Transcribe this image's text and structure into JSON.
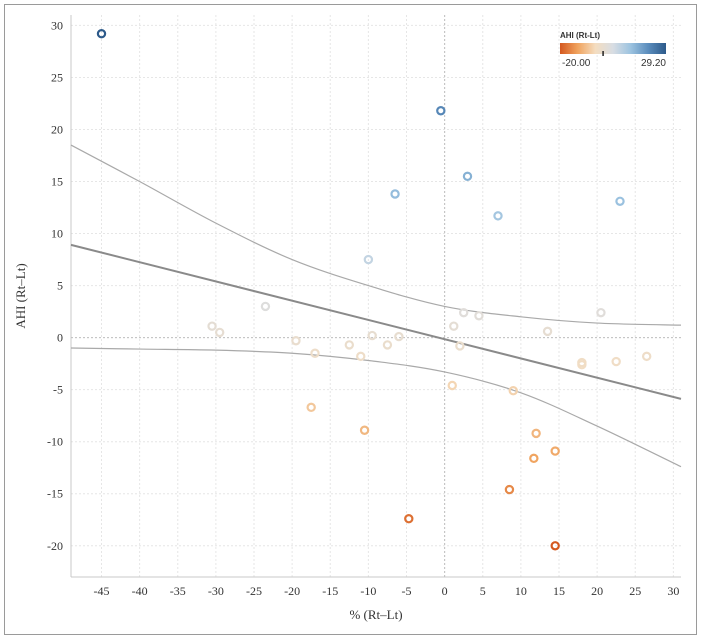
{
  "chart_data": {
    "type": "scatter",
    "title": "",
    "xlabel": "% (Rt–Lt)",
    "ylabel": "AHI (Rt–Lt)",
    "xlim": [
      -49,
      31
    ],
    "ylim": [
      -23,
      31
    ],
    "x_ticks": [
      -45,
      -40,
      -35,
      -30,
      -25,
      -20,
      -15,
      -10,
      -5,
      0,
      5,
      10,
      15,
      20,
      25,
      30
    ],
    "y_ticks": [
      30,
      25,
      20,
      15,
      10,
      5,
      0,
      -5,
      -10,
      -15,
      -20
    ],
    "legend": {
      "title": "AHI (Rt-Lt)",
      "min_label": "-20.00",
      "max_label": "29.20",
      "min": -20.0,
      "max": 29.2,
      "position": "top-right",
      "colors": [
        "#d4581f",
        "#f0a35e",
        "#f4ddc0",
        "#d8dde3",
        "#9cc3e0",
        "#5a8cbc",
        "#2d5a8a"
      ]
    },
    "points": [
      {
        "x": -45.0,
        "y": 29.2
      },
      {
        "x": -0.5,
        "y": 21.8
      },
      {
        "x": 3.0,
        "y": 15.5
      },
      {
        "x": 23.0,
        "y": 13.1
      },
      {
        "x": -6.5,
        "y": 13.8
      },
      {
        "x": 7.0,
        "y": 11.7
      },
      {
        "x": -10.0,
        "y": 7.5
      },
      {
        "x": -23.5,
        "y": 3.0
      },
      {
        "x": 2.5,
        "y": 2.4
      },
      {
        "x": 4.5,
        "y": 2.1
      },
      {
        "x": 20.5,
        "y": 2.4
      },
      {
        "x": -30.5,
        "y": 1.1
      },
      {
        "x": 1.2,
        "y": 1.1
      },
      {
        "x": -29.5,
        "y": 0.5
      },
      {
        "x": -9.5,
        "y": 0.2
      },
      {
        "x": -6.0,
        "y": 0.1
      },
      {
        "x": 13.5,
        "y": 0.6
      },
      {
        "x": -19.5,
        "y": -0.3
      },
      {
        "x": -12.5,
        "y": -0.7
      },
      {
        "x": -7.5,
        "y": -0.7
      },
      {
        "x": 2.0,
        "y": -0.8
      },
      {
        "x": -17.0,
        "y": -1.5
      },
      {
        "x": -11.0,
        "y": -1.8
      },
      {
        "x": 26.5,
        "y": -1.8
      },
      {
        "x": 22.5,
        "y": -2.3
      },
      {
        "x": 18.0,
        "y": -2.4
      },
      {
        "x": 18.0,
        "y": -2.6
      },
      {
        "x": 1.0,
        "y": -4.6
      },
      {
        "x": 9.0,
        "y": -5.1
      },
      {
        "x": -17.5,
        "y": -6.7
      },
      {
        "x": -10.5,
        "y": -8.9
      },
      {
        "x": 12.0,
        "y": -9.2
      },
      {
        "x": 14.5,
        "y": -10.9
      },
      {
        "x": 11.7,
        "y": -11.6
      },
      {
        "x": 8.5,
        "y": -14.6
      },
      {
        "x": -4.7,
        "y": -17.4
      },
      {
        "x": 14.5,
        "y": -20.0
      }
    ],
    "regression": {
      "intercept": -0.15,
      "slope": -0.185
    },
    "confidence_upper": [
      {
        "x": -49,
        "y": 18.5
      },
      {
        "x": -40,
        "y": 15.0
      },
      {
        "x": -30,
        "y": 11.0
      },
      {
        "x": -20,
        "y": 7.5
      },
      {
        "x": -10,
        "y": 5.0
      },
      {
        "x": 0,
        "y": 3.0
      },
      {
        "x": 10,
        "y": 2.0
      },
      {
        "x": 20,
        "y": 1.4
      },
      {
        "x": 31,
        "y": 1.2
      }
    ],
    "confidence_lower": [
      {
        "x": -49,
        "y": -1.0
      },
      {
        "x": -40,
        "y": -1.1
      },
      {
        "x": -30,
        "y": -1.2
      },
      {
        "x": -20,
        "y": -1.5
      },
      {
        "x": -10,
        "y": -2.2
      },
      {
        "x": 0,
        "y": -3.3
      },
      {
        "x": 10,
        "y": -5.3
      },
      {
        "x": 20,
        "y": -8.5
      },
      {
        "x": 31,
        "y": -12.4
      }
    ]
  }
}
